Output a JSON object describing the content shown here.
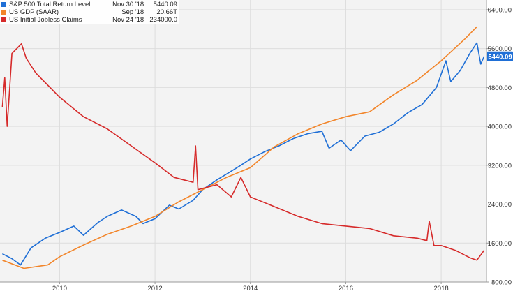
{
  "legend": [
    {
      "name": "S&P 500 Total Return Level",
      "date": "Nov 30 '18",
      "value": "5440.09",
      "color": "#1f6fd6"
    },
    {
      "name": "US GDP (SAAR)",
      "date": "Sep '18",
      "value": "20.66T",
      "color": "#f2852a"
    },
    {
      "name": "US Initial Jobless Claims",
      "date": "Nov 24 '18",
      "value": "234000.0",
      "color": "#d62a2a"
    }
  ],
  "last_value_tag": "5440.09",
  "chart_data": {
    "type": "line",
    "title": "",
    "xlabel": "",
    "ylabel": "",
    "xlim": [
      2008.75,
      2018.95
    ],
    "ylim": [
      800,
      6600
    ],
    "x_ticks": [
      "2010",
      "2012",
      "2014",
      "2016",
      "2018"
    ],
    "y_ticks": [
      "6400.00",
      "5600.00",
      "4800.00",
      "4000.00",
      "3200.00",
      "2400.00",
      "1600.00",
      "800.00"
    ],
    "grid": true,
    "legend_position": "top-left",
    "series": [
      {
        "name": "S&P 500 Total Return Level",
        "color": "#1f6fd6",
        "points": [
          [
            2008.8,
            1380
          ],
          [
            2009.0,
            1280
          ],
          [
            2009.18,
            1150
          ],
          [
            2009.4,
            1500
          ],
          [
            2009.7,
            1700
          ],
          [
            2010.0,
            1820
          ],
          [
            2010.3,
            1950
          ],
          [
            2010.5,
            1760
          ],
          [
            2010.8,
            2020
          ],
          [
            2011.0,
            2150
          ],
          [
            2011.3,
            2280
          ],
          [
            2011.6,
            2150
          ],
          [
            2011.75,
            2000
          ],
          [
            2012.0,
            2100
          ],
          [
            2012.3,
            2380
          ],
          [
            2012.5,
            2300
          ],
          [
            2012.8,
            2480
          ],
          [
            2013.0,
            2700
          ],
          [
            2013.3,
            2900
          ],
          [
            2013.5,
            3020
          ],
          [
            2013.8,
            3200
          ],
          [
            2014.0,
            3330
          ],
          [
            2014.3,
            3480
          ],
          [
            2014.6,
            3600
          ],
          [
            2014.9,
            3750
          ],
          [
            2015.2,
            3850
          ],
          [
            2015.5,
            3900
          ],
          [
            2015.65,
            3550
          ],
          [
            2015.9,
            3720
          ],
          [
            2016.1,
            3500
          ],
          [
            2016.4,
            3800
          ],
          [
            2016.7,
            3880
          ],
          [
            2017.0,
            4050
          ],
          [
            2017.3,
            4280
          ],
          [
            2017.6,
            4450
          ],
          [
            2017.9,
            4800
          ],
          [
            2018.1,
            5350
          ],
          [
            2018.2,
            4920
          ],
          [
            2018.4,
            5150
          ],
          [
            2018.6,
            5500
          ],
          [
            2018.75,
            5720
          ],
          [
            2018.83,
            5280
          ],
          [
            2018.9,
            5440
          ]
        ]
      },
      {
        "name": "US GDP (SAAR)",
        "color": "#f2852a",
        "points": [
          [
            2008.8,
            1250
          ],
          [
            2009.25,
            1080
          ],
          [
            2009.75,
            1150
          ],
          [
            2010.0,
            1320
          ],
          [
            2010.5,
            1560
          ],
          [
            2011.0,
            1780
          ],
          [
            2011.5,
            1950
          ],
          [
            2012.0,
            2150
          ],
          [
            2012.5,
            2450
          ],
          [
            2013.0,
            2700
          ],
          [
            2013.5,
            2950
          ],
          [
            2014.0,
            3150
          ],
          [
            2014.5,
            3580
          ],
          [
            2015.0,
            3850
          ],
          [
            2015.5,
            4050
          ],
          [
            2016.0,
            4200
          ],
          [
            2016.5,
            4300
          ],
          [
            2017.0,
            4650
          ],
          [
            2017.5,
            4950
          ],
          [
            2018.0,
            5350
          ],
          [
            2018.5,
            5800
          ],
          [
            2018.75,
            6050
          ]
        ]
      },
      {
        "name": "US Initial Jobless Claims",
        "color": "#d62a2a",
        "points": [
          [
            2008.8,
            4400
          ],
          [
            2008.85,
            5000
          ],
          [
            2008.9,
            4000
          ],
          [
            2009.0,
            5500
          ],
          [
            2009.2,
            5700
          ],
          [
            2009.3,
            5400
          ],
          [
            2009.5,
            5100
          ],
          [
            2009.7,
            4900
          ],
          [
            2010.0,
            4600
          ],
          [
            2010.5,
            4200
          ],
          [
            2011.0,
            3950
          ],
          [
            2011.5,
            3600
          ],
          [
            2012.0,
            3250
          ],
          [
            2012.4,
            2950
          ],
          [
            2012.8,
            2850
          ],
          [
            2012.85,
            3600
          ],
          [
            2012.9,
            2700
          ],
          [
            2013.3,
            2800
          ],
          [
            2013.6,
            2550
          ],
          [
            2013.8,
            2950
          ],
          [
            2014.0,
            2550
          ],
          [
            2014.5,
            2350
          ],
          [
            2015.0,
            2150
          ],
          [
            2015.5,
            2000
          ],
          [
            2016.0,
            1950
          ],
          [
            2016.5,
            1900
          ],
          [
            2017.0,
            1750
          ],
          [
            2017.5,
            1700
          ],
          [
            2017.7,
            1650
          ],
          [
            2017.75,
            2050
          ],
          [
            2017.85,
            1550
          ],
          [
            2018.0,
            1550
          ],
          [
            2018.3,
            1450
          ],
          [
            2018.6,
            1300
          ],
          [
            2018.75,
            1250
          ],
          [
            2018.9,
            1450
          ]
        ]
      }
    ]
  }
}
